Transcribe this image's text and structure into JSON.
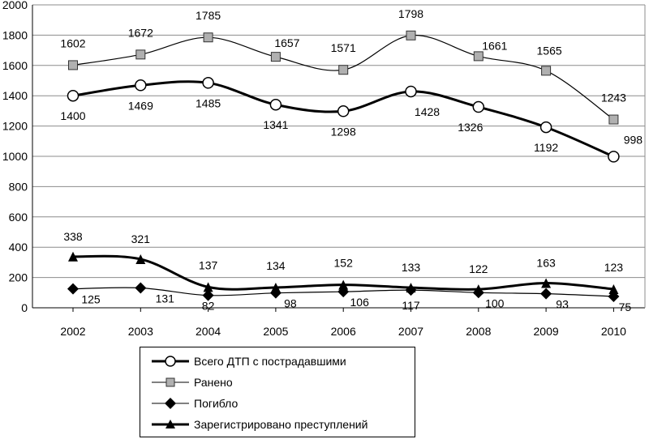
{
  "chart_data": {
    "type": "line",
    "title": "",
    "xlabel": "",
    "ylabel": "",
    "ylim": [
      0,
      2000
    ],
    "yticks": [
      0,
      200,
      400,
      600,
      800,
      1000,
      1200,
      1400,
      1600,
      1800,
      2000
    ],
    "grid": "horizontal",
    "legend": "bottom",
    "categories": [
      "2002",
      "2003",
      "2004",
      "2005",
      "2006",
      "2007",
      "2008",
      "2009",
      "2010"
    ],
    "series": [
      {
        "name": "Всего  ДТП с пострадавшими",
        "marker": "circle",
        "color": "#000000",
        "values": [
          1400,
          1469,
          1485,
          1341,
          1298,
          1428,
          1326,
          1192,
          998
        ]
      },
      {
        "name": "Ранено",
        "marker": "square",
        "color": "#000000",
        "values": [
          1602,
          1672,
          1785,
          1657,
          1571,
          1798,
          1661,
          1565,
          1243
        ]
      },
      {
        "name": "Погибло",
        "marker": "diamond",
        "color": "#000000",
        "values": [
          125,
          131,
          82,
          98,
          106,
          117,
          100,
          93,
          75
        ]
      },
      {
        "name": "Зарегистрировано преступлений",
        "marker": "triangle",
        "color": "#000000",
        "values": [
          338,
          321,
          137,
          134,
          152,
          133,
          122,
          163,
          123
        ]
      }
    ]
  }
}
